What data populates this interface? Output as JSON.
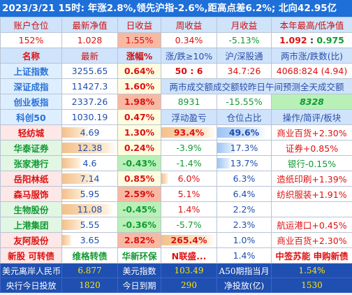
{
  "title": "2023/3/21  15时: 年涨2.8%,领先沪指-2.6%,距高点差6.2%; 北向42.95亿",
  "account": {
    "headers": [
      "账户仓位",
      "最新净值",
      "日收益",
      "周收益",
      "月收益",
      "本年最高/低净值"
    ],
    "values": [
      "152%",
      "1.028",
      "1.55%",
      "0.34%",
      "-5.13%",
      "1.092",
      "0.975"
    ]
  },
  "index_headers": [
    "名称",
    "最新",
    "涨幅%",
    "涨/跌≥10%",
    "沪/深股通",
    "两市涨/跌数(比)"
  ],
  "indices": [
    {
      "name": "上证指数",
      "last": "3255.65",
      "chg": "0.64%",
      "a": "50 : 6",
      "b": "34.7:26",
      "c": "4068:824 (4.94)"
    },
    {
      "name": "深证成指",
      "last": "11427.3",
      "chg": "1.60%",
      "mid": "两市成交额成交额较昨日午间预测全天成交额"
    },
    {
      "name": "创业板指",
      "last": "2337.26",
      "chg": "1.98%",
      "a": "8931",
      "b": "-15.55%",
      "c": "8328"
    },
    {
      "name": "科创50",
      "last": "1030.19",
      "chg": "0.47%",
      "a": "浮动盈亏",
      "b": "仓位占比",
      "c": "操作/简评/板块"
    }
  ],
  "stocks": [
    {
      "name": "轻纺城",
      "price": "4.69",
      "chg": "1.30%",
      "pnl": "93.4%",
      "pos": "49.6%",
      "note": "商业百货+2.30%"
    },
    {
      "name": "华泰证券",
      "price": "12.38",
      "chg": "0.24%",
      "pnl": "-3.9%",
      "pos": "17.3%",
      "note": "证券+0.85%"
    },
    {
      "name": "张家港行",
      "price": "4.6",
      "chg": "-0.43%",
      "pnl": "-1.4%",
      "pos": "13.7%",
      "note": "银行-0.15%"
    },
    {
      "name": "岳阳林纸",
      "price": "7.14",
      "chg": "0.85%",
      "pnl": "6.0%",
      "pos": "6.3%",
      "note": "造纸印刷+1.39%"
    },
    {
      "name": "森马服饰",
      "price": "5.95",
      "chg": "2.59%",
      "pnl": "5.1%",
      "pos": "6.4%",
      "note": "纺织服装+1.91%"
    },
    {
      "name": "生物股份",
      "price": "11.08",
      "chg": "-0.45%",
      "pnl": "1.4%",
      "pos": "2.2%",
      "note": ""
    },
    {
      "name": "上港集团",
      "price": "5.55",
      "chg": "-0.36%",
      "pnl": "-5.7%",
      "pos": "2.3%",
      "note": "航运港口+0.45%"
    },
    {
      "name": "友阿股份",
      "price": "3.65",
      "chg": "2.82%",
      "pnl": "265.4%",
      "pos": "1.0%",
      "note": "商业百货+2.30%"
    }
  ],
  "new_row": {
    "a": "新股 可转债",
    "b": "维格转债",
    "c": "华新环保",
    "d": "N联盛...",
    "e": "1.4%",
    "f": "中签苏能 申购新债"
  },
  "footer": {
    "r1": [
      "美元离岸人民币",
      "6.877",
      "美元指数",
      "103.49",
      "A50期指当月",
      "1.54%"
    ],
    "r2": [
      "央行今日投放",
      "1820",
      "今日到期",
      "290",
      "净投放(亿)",
      "1530"
    ]
  }
}
